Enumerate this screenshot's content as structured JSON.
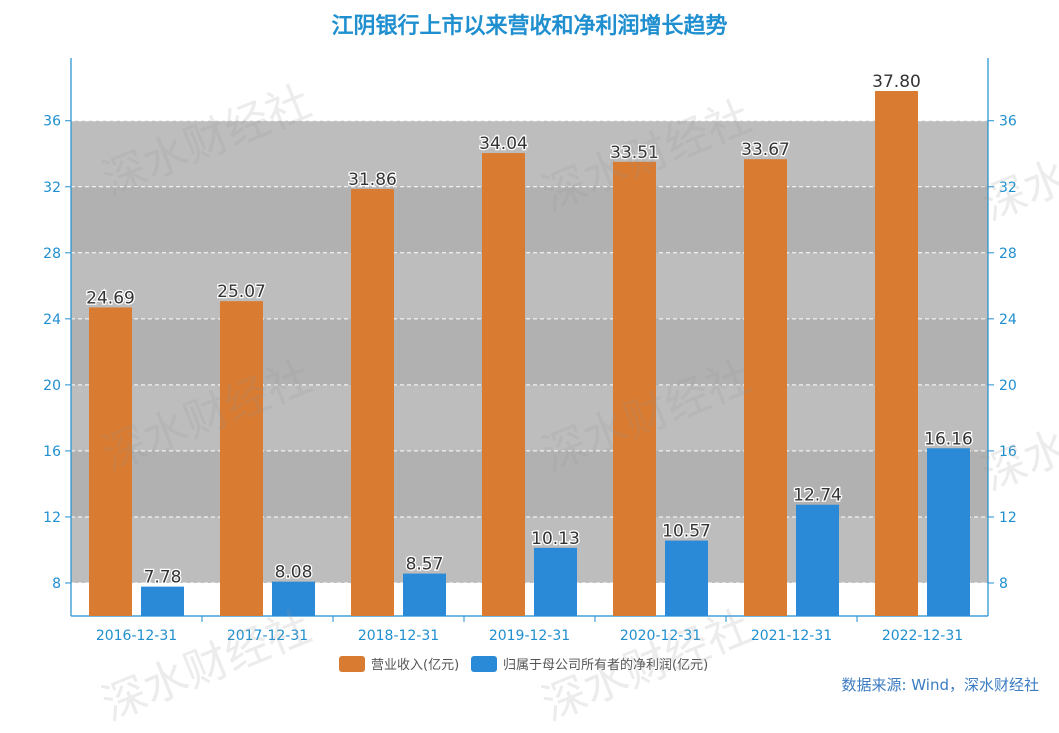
{
  "chart_data": {
    "type": "bar",
    "title": "江阴银行上市以来营收和净利润增长趋势",
    "categories": [
      "2016-12-31",
      "2017-12-31",
      "2018-12-31",
      "2019-12-31",
      "2020-12-31",
      "2021-12-31",
      "2022-12-31"
    ],
    "series": [
      {
        "name": "营业收入(亿元)",
        "color": "#d97b30",
        "values": [
          24.69,
          25.07,
          31.86,
          34.04,
          33.51,
          33.67,
          37.8
        ],
        "labels": [
          "24.69",
          "25.07",
          "31.86",
          "34.04",
          "33.51",
          "33.67",
          "37.80"
        ]
      },
      {
        "name": "归属于母公司所有者的净利润(亿元)",
        "color": "#2b8ad8",
        "values": [
          7.78,
          8.08,
          8.57,
          10.13,
          10.57,
          12.74,
          16.16
        ],
        "labels": [
          "7.78",
          "8.08",
          "8.57",
          "10.13",
          "10.57",
          "12.74",
          "16.16"
        ]
      }
    ],
    "yticks": [
      8,
      12,
      16,
      20,
      24,
      28,
      32,
      36
    ],
    "ylim": [
      6,
      39.8
    ],
    "legend_position": "bottom",
    "axis_color": "#1f8fd0",
    "source": "数据来源: Wind，深水财经社"
  },
  "watermark_text": "深水财经社"
}
